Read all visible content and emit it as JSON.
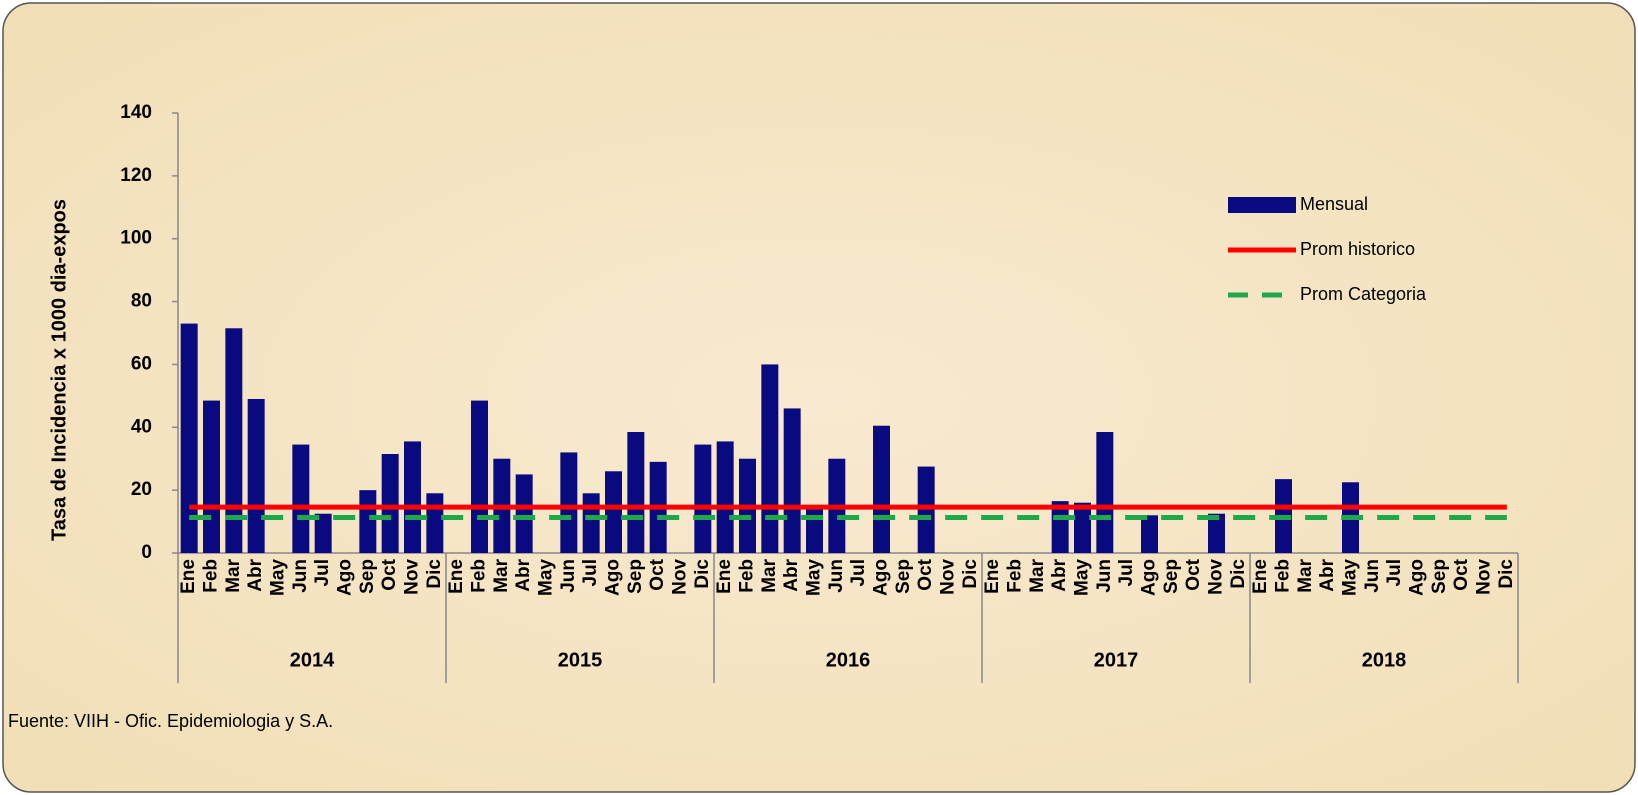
{
  "chart_data": {
    "type": "bar",
    "y_label": "Tasa de Incidencia x 1000 dia-expos",
    "source": "Fuente: VIIH - Ofic. Epidemiologia y S.A.",
    "groups": [
      {
        "name": "2014",
        "categories": [
          "Ene",
          "Feb",
          "Mar",
          "Abr",
          "May",
          "Jun",
          "Jul",
          "Ago",
          "Sep",
          "Oct",
          "Nov",
          "Dic"
        ]
      },
      {
        "name": "2015",
        "categories": [
          "Ene",
          "Feb",
          "Mar",
          "Abr",
          "May",
          "Jun",
          "Jul",
          "Ago",
          "Sep",
          "Oct",
          "Nov",
          "Dic"
        ]
      },
      {
        "name": "2016",
        "categories": [
          "Ene",
          "Feb",
          "Mar",
          "Abr",
          "May",
          "Jun",
          "Jul",
          "Ago",
          "Sep",
          "Oct",
          "Nov",
          "Dic"
        ]
      },
      {
        "name": "2017",
        "categories": [
          "Ene",
          "Feb",
          "Mar",
          "Abr",
          "May",
          "Jun",
          "Jul",
          "Ago",
          "Sep",
          "Oct",
          "Nov",
          "Dic"
        ]
      },
      {
        "name": "2018",
        "categories": [
          "Ene",
          "Feb",
          "Mar",
          "Abr",
          "May",
          "Jun",
          "Jul",
          "Ago",
          "Sep",
          "Oct",
          "Nov",
          "Dic"
        ]
      }
    ],
    "series": [
      {
        "name": "Mensual",
        "type": "bar",
        "color": "#0a0a80",
        "values": [
          73,
          48.5,
          71.5,
          49,
          0,
          34.5,
          12.5,
          0,
          20,
          31.5,
          35.5,
          19,
          0,
          48.5,
          30,
          25,
          0,
          32,
          19,
          26,
          38.5,
          29,
          0,
          34.5,
          35.5,
          30,
          60,
          46,
          14,
          30,
          0,
          40.5,
          0,
          27.5,
          0,
          0,
          0,
          0,
          0,
          16.5,
          16,
          38.5,
          0,
          12,
          0,
          0,
          12.5,
          0,
          0,
          23.5,
          0,
          0,
          22.5,
          0,
          0,
          0,
          0,
          0,
          0,
          0
        ]
      },
      {
        "name": "Prom historico",
        "type": "line",
        "color": "#ff0000",
        "dash": false,
        "values": [
          14.6,
          14.6,
          14.6,
          14.6,
          14.6,
          14.6,
          14.6,
          14.6,
          14.6,
          14.6,
          14.6,
          14.6,
          14.6,
          14.6,
          14.6,
          14.6,
          14.6,
          14.6,
          14.6,
          14.6,
          14.6,
          14.6,
          14.6,
          14.6,
          14.6,
          14.6,
          14.6,
          14.6,
          14.6,
          14.6,
          14.6,
          14.6,
          14.6,
          14.6,
          14.6,
          14.6,
          14.6,
          14.6,
          14.6,
          14.6,
          14.6,
          14.6,
          14.6,
          14.6,
          14.6,
          14.6,
          14.6,
          14.6,
          14.6,
          14.6,
          14.6,
          14.6,
          14.6,
          14.6,
          14.6,
          14.6,
          14.6,
          14.6,
          14.6,
          14.6
        ]
      },
      {
        "name": "Prom Categoria",
        "type": "line",
        "color": "#1fa84a",
        "dash": true,
        "values": [
          11.3,
          11.3,
          11.3,
          11.3,
          11.3,
          11.3,
          11.3,
          11.3,
          11.3,
          11.3,
          11.3,
          11.3,
          11.3,
          11.3,
          11.3,
          11.3,
          11.3,
          11.3,
          11.3,
          11.3,
          11.3,
          11.3,
          11.3,
          11.3,
          11.3,
          11.3,
          11.3,
          11.3,
          11.3,
          11.3,
          11.3,
          11.3,
          11.3,
          11.3,
          11.3,
          11.3,
          11.3,
          11.3,
          11.3,
          11.3,
          11.3,
          11.3,
          11.3,
          11.3,
          11.3,
          11.3,
          11.3,
          11.3,
          11.3,
          11.3,
          11.3,
          11.3,
          11.3,
          11.3,
          11.3,
          11.3,
          11.3,
          11.3,
          11.3,
          11.3
        ]
      }
    ],
    "ylim": [
      0,
      140
    ],
    "yticks": [
      0,
      20,
      40,
      60,
      80,
      100,
      120,
      140
    ],
    "grid": false,
    "legend": "right"
  }
}
